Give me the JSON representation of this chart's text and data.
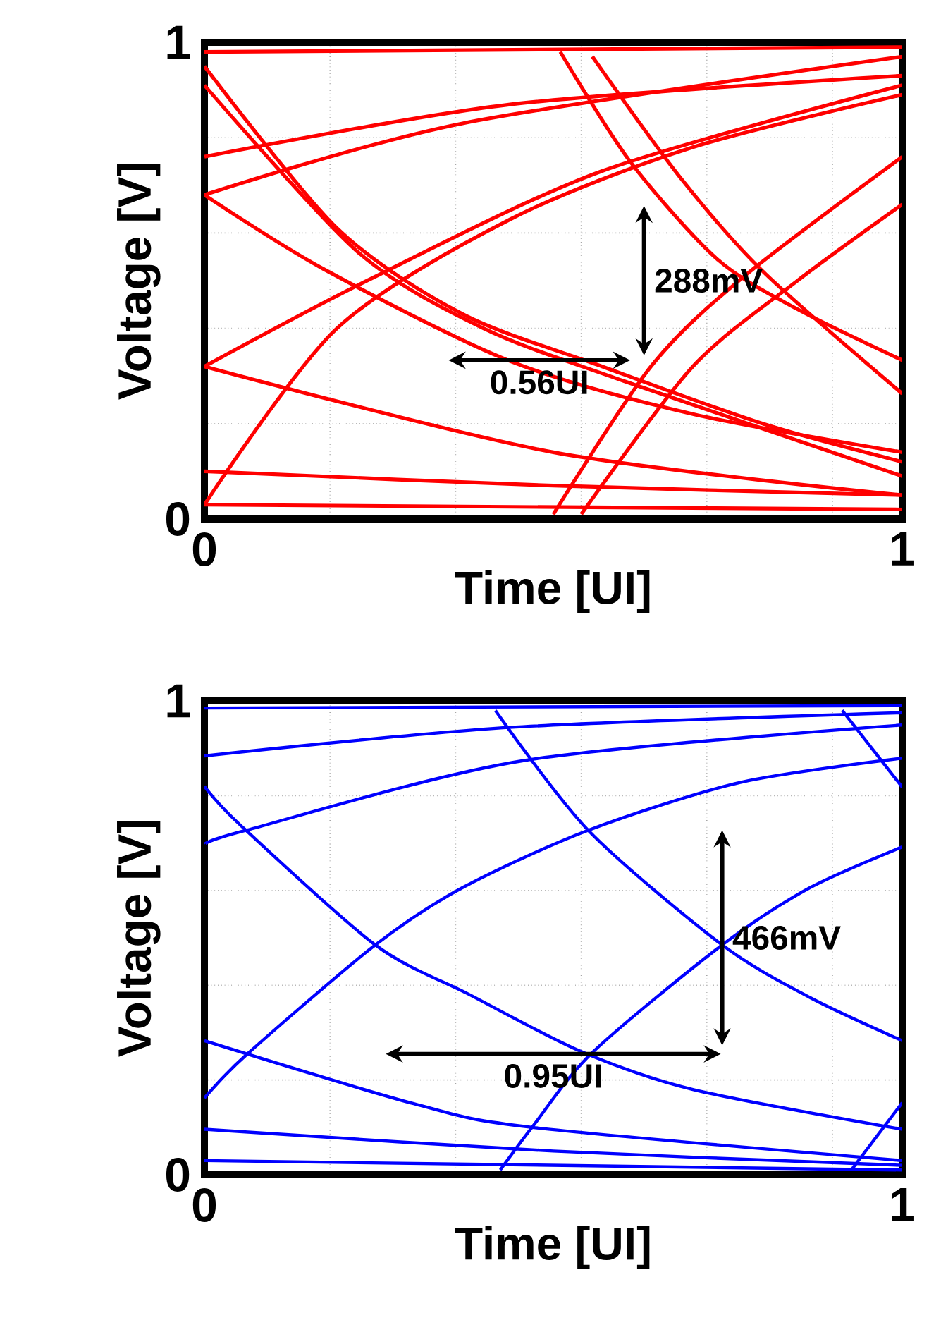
{
  "chart_data": [
    {
      "type": "line",
      "xlabel": "Time [UI]",
      "ylabel": "Voltage [V]",
      "xlim": [
        0,
        1
      ],
      "ylim": [
        0,
        1
      ],
      "xticks": [
        0,
        {
          "value": 0.18,
          "label": null
        },
        {
          "value": 0.36,
          "label": null
        },
        {
          "value": 0.54,
          "label": null
        },
        {
          "value": 0.72,
          "label": null
        },
        {
          "value": 0.9,
          "label": null
        },
        1
      ],
      "yticks": [
        0,
        {
          "value": 0.2,
          "label": null
        },
        {
          "value": 0.4,
          "label": null
        },
        {
          "value": 0.6,
          "label": null
        },
        {
          "value": 0.8,
          "label": null
        },
        1
      ],
      "grid": true,
      "line_style": "solid",
      "annotations": [
        "288mV",
        "0.56UI"
      ],
      "series": [
        {
          "color": "#ff0000",
          "x": [
            0,
            0.19,
            0.37,
            0.57,
            0.8,
            1
          ],
          "values": [
            0.95,
            0.61,
            0.43,
            0.32,
            0.2,
            0.12
          ]
        },
        {
          "color": "#ff0000",
          "x": [
            0,
            0.22,
            0.4,
            0.6,
            1
          ],
          "values": [
            0.91,
            0.56,
            0.4,
            0.29,
            0.09
          ]
        },
        {
          "color": "#ff0000",
          "x": [
            0.51,
            0.61,
            0.735,
            0.85,
            1
          ],
          "values": [
            0.98,
            0.75,
            0.545,
            0.44,
            0.333
          ]
        },
        {
          "color": "#ff0000",
          "x": [
            0.556,
            0.68,
            0.8,
            1
          ],
          "values": [
            0.97,
            0.72,
            0.52,
            0.263
          ]
        },
        {
          "color": "#ff0000",
          "x": [
            0,
            0.17,
            0.44,
            0.7,
            1
          ],
          "values": [
            0.68,
            0.525,
            0.33,
            0.22,
            0.14
          ]
        },
        {
          "color": "#ff0000",
          "x": [
            0,
            0.5,
            1
          ],
          "values": [
            0.32,
            0.14,
            0.05
          ]
        },
        {
          "color": "#ff0000",
          "x": [
            0,
            0.19,
            0.44,
            0.7,
            1
          ],
          "values": [
            0.03,
            0.4,
            0.63,
            0.78,
            0.89
          ]
        },
        {
          "color": "#ff0000",
          "x": [
            0,
            0.24,
            0.57,
            1
          ],
          "values": [
            0.32,
            0.505,
            0.73,
            0.91
          ]
        },
        {
          "color": "#ff0000",
          "x": [
            0,
            0.37,
            1
          ],
          "values": [
            0.68,
            0.83,
            0.97
          ]
        },
        {
          "color": "#ff0000",
          "x": [
            0,
            0.44,
            1
          ],
          "values": [
            0.76,
            0.87,
            0.93
          ]
        },
        {
          "color": "#ff0000",
          "x": [
            0.5,
            0.64,
            0.77,
            1
          ],
          "values": [
            0.01,
            0.32,
            0.505,
            0.76
          ]
        },
        {
          "color": "#ff0000",
          "x": [
            0.54,
            0.7,
            0.85,
            1
          ],
          "values": [
            0.01,
            0.32,
            0.5,
            0.66
          ]
        },
        {
          "color": "#ff0000",
          "x": [
            0,
            1
          ],
          "values": [
            0.98,
            0.99
          ]
        },
        {
          "color": "#ff0000",
          "x": [
            0,
            0.5,
            1
          ],
          "values": [
            0.1,
            0.07,
            0.05
          ]
        },
        {
          "color": "#ff0000",
          "x": [
            0,
            1
          ],
          "values": [
            0.03,
            0.02
          ]
        }
      ]
    },
    {
      "type": "line",
      "xlabel": "Time [UI]",
      "ylabel": "Voltage [V]",
      "xlim": [
        0,
        1
      ],
      "ylim": [
        0,
        1
      ],
      "xticks": [
        0,
        {
          "value": 0.18,
          "label": null
        },
        {
          "value": 0.36,
          "label": null
        },
        {
          "value": 0.54,
          "label": null
        },
        {
          "value": 0.72,
          "label": null
        },
        {
          "value": 0.9,
          "label": null
        },
        1
      ],
      "yticks": [
        0,
        {
          "value": 0.2,
          "label": null
        },
        {
          "value": 0.4,
          "label": null
        },
        {
          "value": 0.6,
          "label": null
        },
        {
          "value": 0.8,
          "label": null
        },
        1
      ],
      "grid": true,
      "line_style": "solid",
      "annotations": [
        "466mV",
        "0.95UI"
      ],
      "series": [
        {
          "color": "#0000ff",
          "x": [
            0,
            0.05,
            0.245,
            0.38,
            0.54,
            0.7,
            1
          ],
          "values": [
            0.82,
            0.74,
            0.485,
            0.38,
            0.26,
            0.18,
            0.096
          ]
        },
        {
          "color": "#0000ff",
          "x": [
            0.417,
            0.55,
            0.742,
            0.868,
            1
          ],
          "values": [
            0.98,
            0.727,
            0.485,
            0.374,
            0.283
          ]
        },
        {
          "color": "#0000ff",
          "x": [
            0.914,
            1
          ],
          "values": [
            0.98,
            0.818
          ]
        },
        {
          "color": "#0000ff",
          "x": [
            0,
            0.06,
            0.245,
            0.37,
            0.55,
            0.768,
            1
          ],
          "values": [
            0.162,
            0.253,
            0.485,
            0.606,
            0.727,
            0.828,
            0.879
          ]
        },
        {
          "color": "#0000ff",
          "x": [
            0.424,
            0.47,
            0.556,
            0.742,
            0.868,
            1
          ],
          "values": [
            0.01,
            0.101,
            0.258,
            0.485,
            0.606,
            0.692
          ]
        },
        {
          "color": "#0000ff",
          "x": [
            0.927,
            1
          ],
          "values": [
            0.01,
            0.152
          ]
        },
        {
          "color": "#0000ff",
          "x": [
            0,
            0.06,
            0.457,
            1
          ],
          "values": [
            0.697,
            0.727,
            0.874,
            0.949
          ]
        },
        {
          "color": "#0000ff",
          "x": [
            0,
            0.437,
            1
          ],
          "values": [
            0.884,
            0.944,
            0.975
          ]
        },
        {
          "color": "#0000ff",
          "x": [
            0,
            1
          ],
          "values": [
            0.985,
            0.99
          ]
        },
        {
          "color": "#0000ff",
          "x": [
            0,
            0.3,
            0.47,
            1
          ],
          "values": [
            0.283,
            0.15,
            0.1,
            0.03
          ]
        },
        {
          "color": "#0000ff",
          "x": [
            0,
            0.5,
            1
          ],
          "values": [
            0.096,
            0.05,
            0.02
          ]
        },
        {
          "color": "#0000ff",
          "x": [
            0,
            1
          ],
          "values": [
            0.03,
            0.01
          ]
        }
      ]
    }
  ]
}
